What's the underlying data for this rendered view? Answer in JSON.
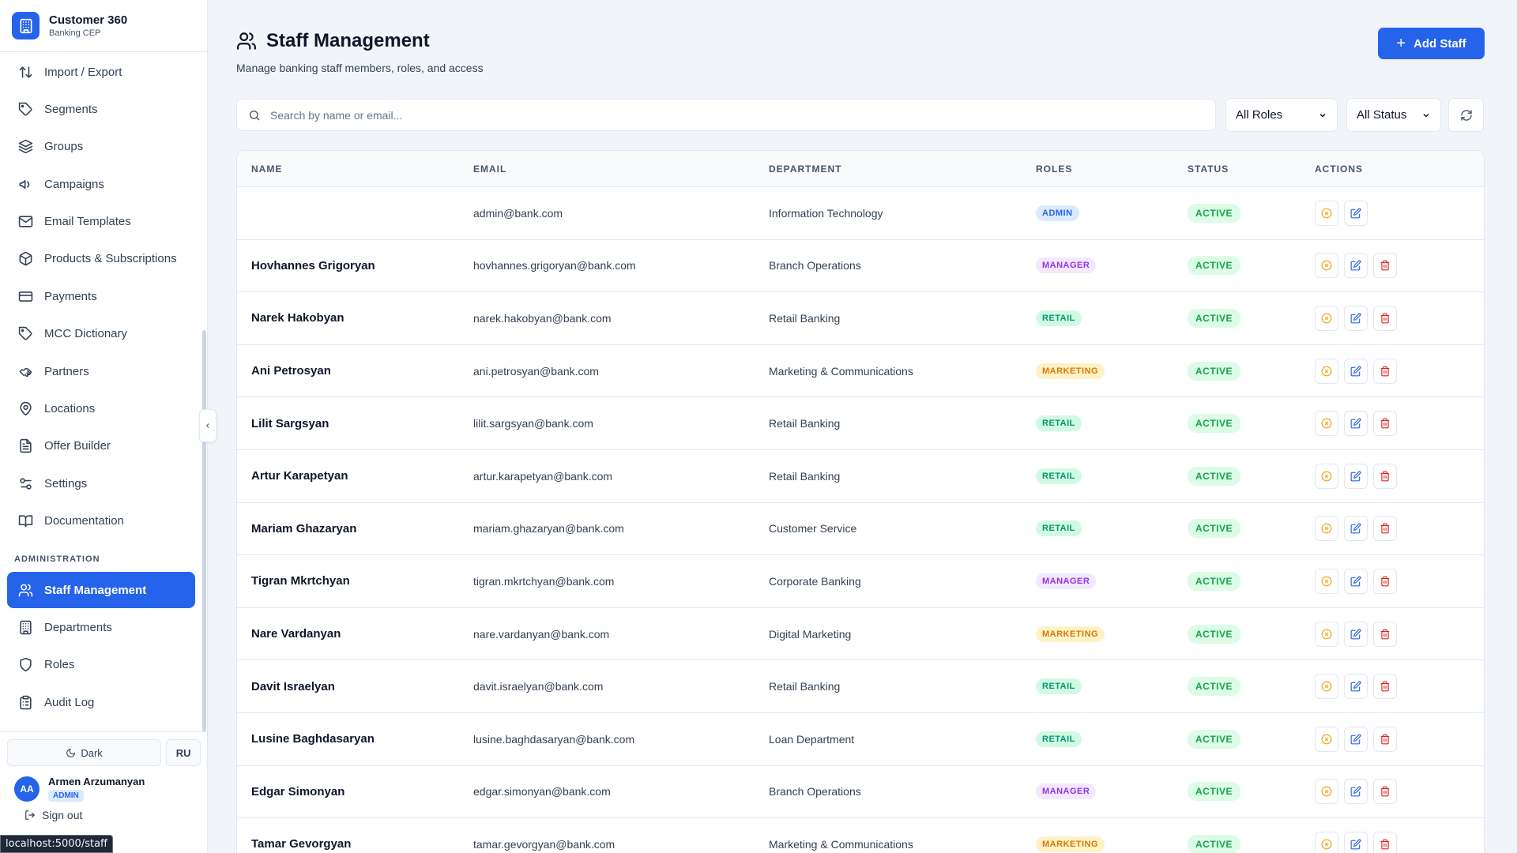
{
  "brand": {
    "title": "Customer 360",
    "subtitle": "Banking CEP"
  },
  "nav": {
    "items": [
      {
        "label": "Import / Export",
        "icon": "arrows-updown-icon"
      },
      {
        "label": "Segments",
        "icon": "tag-icon"
      },
      {
        "label": "Groups",
        "icon": "layers-icon"
      },
      {
        "label": "Campaigns",
        "icon": "megaphone-icon"
      },
      {
        "label": "Email Templates",
        "icon": "mail-icon"
      },
      {
        "label": "Products & Subscriptions",
        "icon": "package-icon"
      },
      {
        "label": "Payments",
        "icon": "credit-card-icon"
      },
      {
        "label": "MCC Dictionary",
        "icon": "tag-icon"
      },
      {
        "label": "Partners",
        "icon": "handshake-icon"
      },
      {
        "label": "Locations",
        "icon": "map-pin-icon"
      },
      {
        "label": "Offer Builder",
        "icon": "file-text-icon"
      },
      {
        "label": "Settings",
        "icon": "sliders-icon"
      },
      {
        "label": "Documentation",
        "icon": "book-icon"
      }
    ],
    "admin_section": "ADMINISTRATION",
    "admin_items": [
      {
        "label": "Staff Management",
        "icon": "users-icon",
        "active": true
      },
      {
        "label": "Departments",
        "icon": "building-icon"
      },
      {
        "label": "Roles",
        "icon": "shield-icon"
      },
      {
        "label": "Audit Log",
        "icon": "clipboard-icon"
      }
    ]
  },
  "footer": {
    "theme_label": "Dark",
    "lang_label": "RU",
    "user_initials": "AA",
    "user_name": "Armen Arzumanyan",
    "user_role": "ADMIN",
    "signout_label": "Sign out",
    "status_url": "localhost:5000/staff"
  },
  "header": {
    "title": "Staff Management",
    "subtitle": "Manage banking staff members, roles, and access",
    "add_label": "Add Staff"
  },
  "filters": {
    "search_placeholder": "Search by name or email...",
    "roles_value": "All Roles",
    "status_value": "All Status"
  },
  "table": {
    "columns": {
      "name": "NAME",
      "email": "EMAIL",
      "department": "DEPARTMENT",
      "roles": "ROLES",
      "status": "STATUS",
      "actions": "ACTIONS"
    },
    "rows": [
      {
        "name": "",
        "email": "admin@bank.com",
        "department": "Information Technology",
        "role": "ADMIN",
        "status": "ACTIVE",
        "deletable": false
      },
      {
        "name": "Hovhannes Grigoryan",
        "email": "hovhannes.grigoryan@bank.com",
        "department": "Branch Operations",
        "role": "MANAGER",
        "status": "ACTIVE",
        "deletable": true
      },
      {
        "name": "Narek Hakobyan",
        "email": "narek.hakobyan@bank.com",
        "department": "Retail Banking",
        "role": "RETAIL",
        "status": "ACTIVE",
        "deletable": true
      },
      {
        "name": "Ani Petrosyan",
        "email": "ani.petrosyan@bank.com",
        "department": "Marketing & Communications",
        "role": "MARKETING",
        "status": "ACTIVE",
        "deletable": true
      },
      {
        "name": "Lilit Sargsyan",
        "email": "lilit.sargsyan@bank.com",
        "department": "Retail Banking",
        "role": "RETAIL",
        "status": "ACTIVE",
        "deletable": true
      },
      {
        "name": "Artur Karapetyan",
        "email": "artur.karapetyan@bank.com",
        "department": "Retail Banking",
        "role": "RETAIL",
        "status": "ACTIVE",
        "deletable": true
      },
      {
        "name": "Mariam Ghazaryan",
        "email": "mariam.ghazaryan@bank.com",
        "department": "Customer Service",
        "role": "RETAIL",
        "status": "ACTIVE",
        "deletable": true
      },
      {
        "name": "Tigran Mkrtchyan",
        "email": "tigran.mkrtchyan@bank.com",
        "department": "Corporate Banking",
        "role": "MANAGER",
        "status": "ACTIVE",
        "deletable": true
      },
      {
        "name": "Nare Vardanyan",
        "email": "nare.vardanyan@bank.com",
        "department": "Digital Marketing",
        "role": "MARKETING",
        "status": "ACTIVE",
        "deletable": true
      },
      {
        "name": "Davit Israelyan",
        "email": "davit.israelyan@bank.com",
        "department": "Retail Banking",
        "role": "RETAIL",
        "status": "ACTIVE",
        "deletable": true
      },
      {
        "name": "Lusine Baghdasaryan",
        "email": "lusine.baghdasaryan@bank.com",
        "department": "Loan Department",
        "role": "RETAIL",
        "status": "ACTIVE",
        "deletable": true
      },
      {
        "name": "Edgar Simonyan",
        "email": "edgar.simonyan@bank.com",
        "department": "Branch Operations",
        "role": "MANAGER",
        "status": "ACTIVE",
        "deletable": true
      },
      {
        "name": "Tamar Gevorgyan",
        "email": "tamar.gevorgyan@bank.com",
        "department": "Marketing & Communications",
        "role": "MARKETING",
        "status": "ACTIVE",
        "deletable": true
      }
    ]
  },
  "colors": {
    "primary": "#2563eb",
    "active": "#16a34a",
    "danger": "#dc2626",
    "warning": "#f59e0b"
  }
}
